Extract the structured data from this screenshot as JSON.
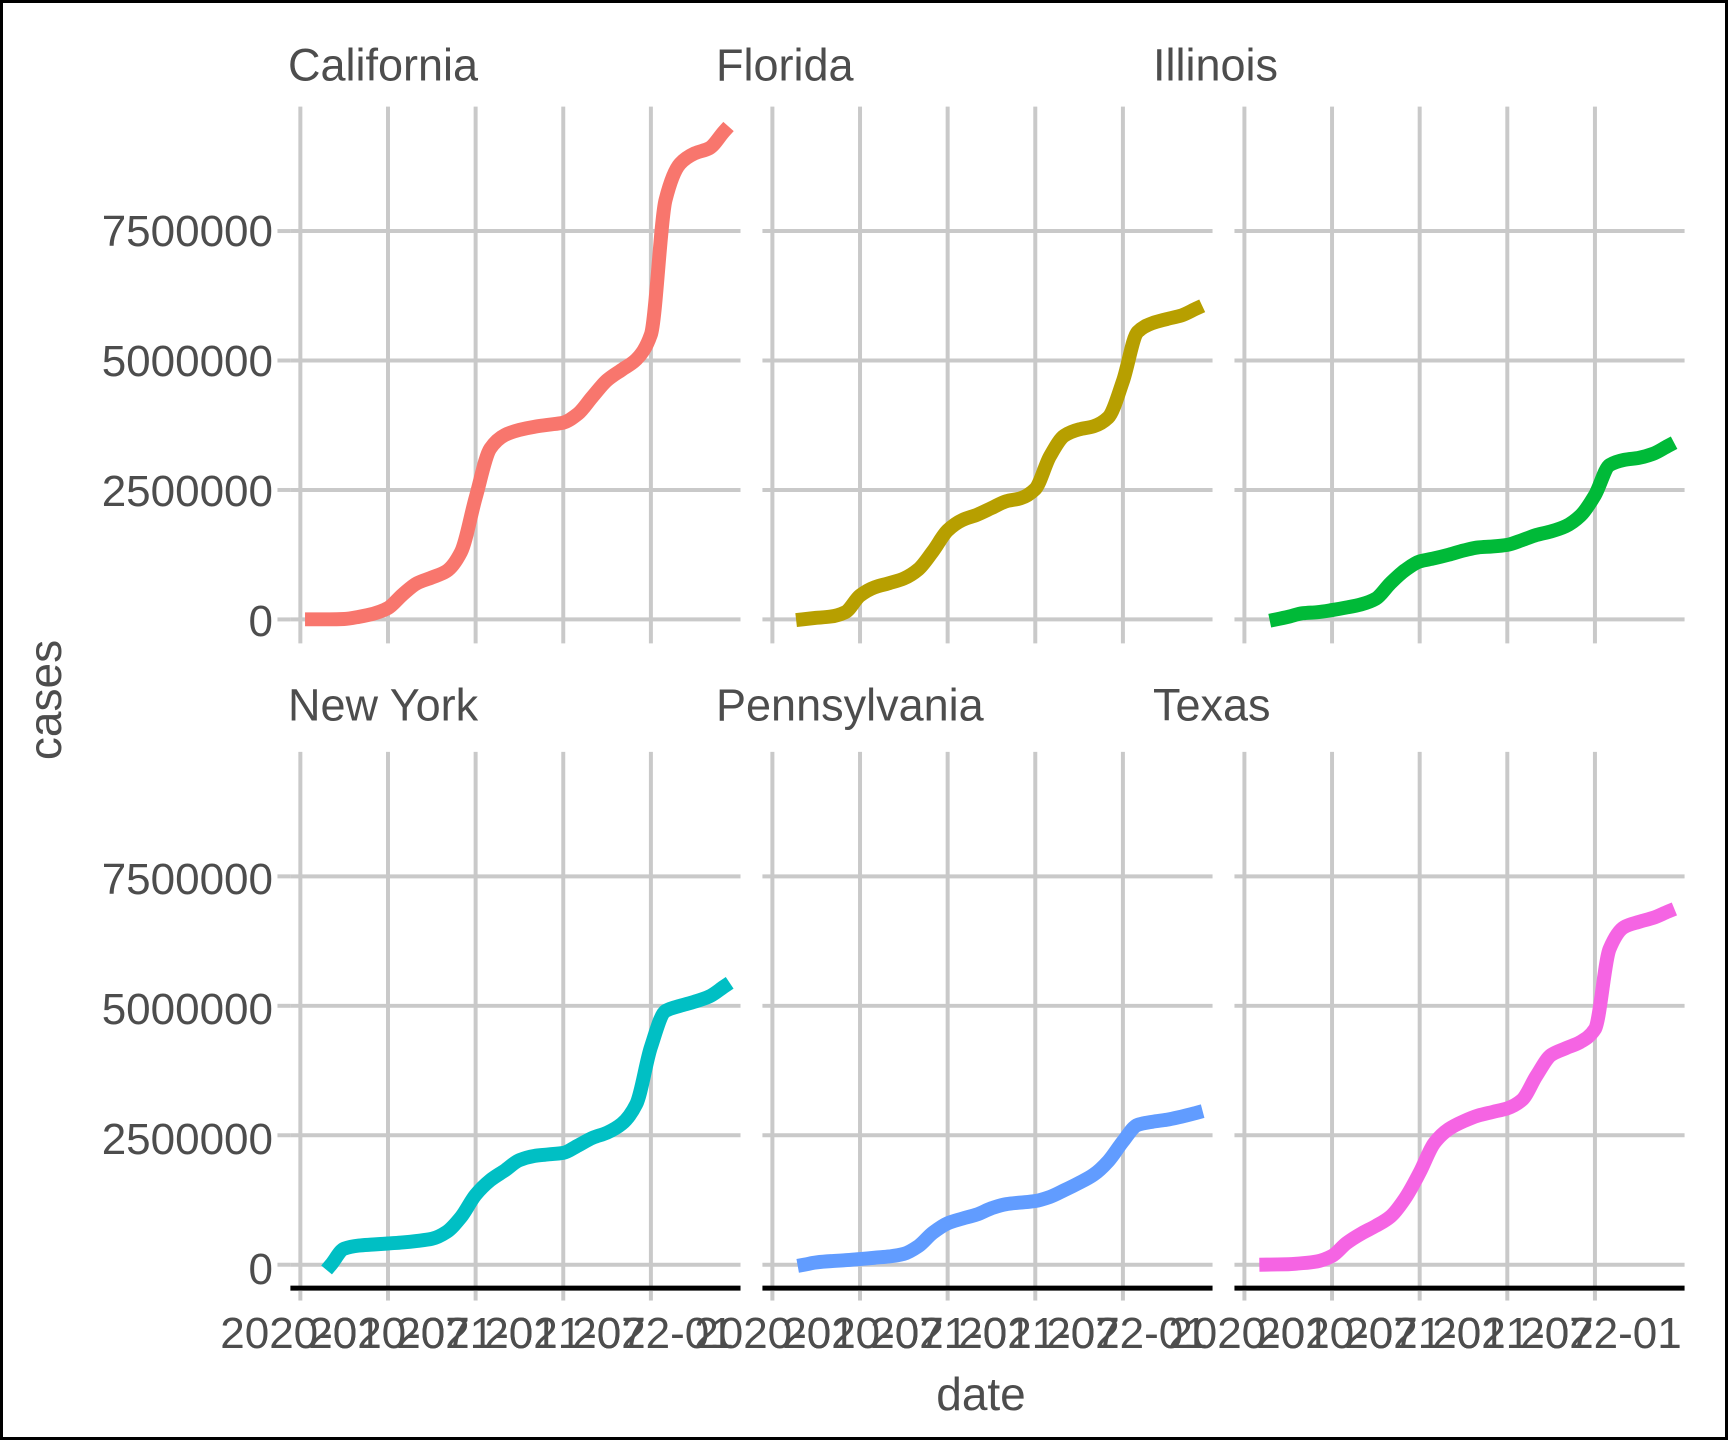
{
  "figure": {
    "background_color": "#ffffff",
    "frame_color": "#000000",
    "grid_color": "#c9c9c9",
    "axis_line_color": "#000000",
    "text_color": "#4d4d4d"
  },
  "axes": {
    "y_title": "cases",
    "x_title": "date",
    "y_ticks": [
      {
        "label": "7500000",
        "value": 7500000
      },
      {
        "label": "5000000",
        "value": 5000000
      },
      {
        "label": "2500000",
        "value": 2500000
      },
      {
        "label": "0",
        "value": 0
      }
    ],
    "x_ticks": [
      "2020-01",
      "2020-07",
      "2021-01",
      "2021-07",
      "2022-01"
    ]
  },
  "chart_data": {
    "type": "line",
    "title": "",
    "xlabel": "date",
    "ylabel": "cases",
    "facet_layout": {
      "rows": 2,
      "cols": 3
    },
    "x_axis": {
      "unit": "months_since_2020-01",
      "tick_labels": [
        "2020-01",
        "2020-07",
        "2021-01",
        "2021-07",
        "2022-01"
      ],
      "tick_month_index": [
        0,
        6,
        12,
        18,
        24
      ],
      "data_range_months": [
        0.7,
        29
      ]
    },
    "y_axis": {
      "unit": "cases",
      "tick_values": [
        0,
        2500000,
        5000000,
        7500000
      ],
      "ylim": [
        -470000,
        9870000
      ],
      "grid": true
    },
    "facets": [
      {
        "title": "California",
        "color": "#F8766D",
        "points_month_vs_million_cases": [
          [
            0.8,
            0.001
          ],
          [
            2,
            0.002
          ],
          [
            3,
            0.008
          ],
          [
            4,
            0.05
          ],
          [
            5,
            0.11
          ],
          [
            6,
            0.22
          ],
          [
            7,
            0.48
          ],
          [
            8,
            0.7
          ],
          [
            9,
            0.81
          ],
          [
            10,
            0.93
          ],
          [
            11,
            1.3
          ],
          [
            12,
            2.35
          ],
          [
            13,
            3.3
          ],
          [
            14,
            3.56
          ],
          [
            15,
            3.66
          ],
          [
            16,
            3.72
          ],
          [
            17,
            3.76
          ],
          [
            18,
            3.8
          ],
          [
            19,
            3.97
          ],
          [
            20,
            4.3
          ],
          [
            21,
            4.62
          ],
          [
            22,
            4.82
          ],
          [
            23,
            5.02
          ],
          [
            24,
            5.5
          ],
          [
            25,
            8.1
          ],
          [
            26,
            8.8
          ],
          [
            27,
            9.0
          ],
          [
            28,
            9.1
          ],
          [
            29,
            9.42
          ]
        ]
      },
      {
        "title": "Florida",
        "color": "#B79F00",
        "points_month_vs_million_cases": [
          [
            2.1,
            0.001
          ],
          [
            3,
            0.03
          ],
          [
            4,
            0.055
          ],
          [
            5,
            0.14
          ],
          [
            6,
            0.46
          ],
          [
            7,
            0.62
          ],
          [
            8,
            0.7
          ],
          [
            9,
            0.79
          ],
          [
            10,
            0.97
          ],
          [
            11,
            1.32
          ],
          [
            12,
            1.72
          ],
          [
            13,
            1.92
          ],
          [
            14,
            2.02
          ],
          [
            15,
            2.15
          ],
          [
            16,
            2.28
          ],
          [
            17,
            2.34
          ],
          [
            18,
            2.52
          ],
          [
            19,
            3.15
          ],
          [
            20,
            3.55
          ],
          [
            21,
            3.67
          ],
          [
            22,
            3.73
          ],
          [
            23,
            3.9
          ],
          [
            24,
            4.6
          ],
          [
            25,
            5.55
          ],
          [
            26,
            5.72
          ],
          [
            27,
            5.8
          ],
          [
            28,
            5.87
          ],
          [
            29,
            6.0
          ]
        ]
      },
      {
        "title": "Illinois",
        "color": "#00BA38",
        "points_month_vs_million_cases": [
          [
            2.2,
            0.001
          ],
          [
            3,
            0.05
          ],
          [
            4,
            0.12
          ],
          [
            5,
            0.14
          ],
          [
            6,
            0.18
          ],
          [
            7,
            0.23
          ],
          [
            8,
            0.29
          ],
          [
            9,
            0.4
          ],
          [
            10,
            0.7
          ],
          [
            11,
            0.95
          ],
          [
            12,
            1.12
          ],
          [
            13,
            1.18
          ],
          [
            14,
            1.25
          ],
          [
            15,
            1.33
          ],
          [
            16,
            1.39
          ],
          [
            17,
            1.41
          ],
          [
            18,
            1.44
          ],
          [
            19,
            1.53
          ],
          [
            20,
            1.63
          ],
          [
            21,
            1.7
          ],
          [
            22,
            1.8
          ],
          [
            23,
            2.0
          ],
          [
            24,
            2.4
          ],
          [
            25,
            2.98
          ],
          [
            26,
            3.08
          ],
          [
            27,
            3.12
          ],
          [
            28,
            3.2
          ],
          [
            29,
            3.35
          ]
        ]
      },
      {
        "title": "New York",
        "color": "#00BFC4",
        "points_month_vs_million_cases": [
          [
            2.1,
            0.001
          ],
          [
            3,
            0.31
          ],
          [
            4,
            0.37
          ],
          [
            5,
            0.39
          ],
          [
            6,
            0.41
          ],
          [
            7,
            0.43
          ],
          [
            8,
            0.46
          ],
          [
            9,
            0.5
          ],
          [
            10,
            0.63
          ],
          [
            11,
            0.92
          ],
          [
            12,
            1.35
          ],
          [
            13,
            1.63
          ],
          [
            14,
            1.82
          ],
          [
            15,
            2.02
          ],
          [
            16,
            2.1
          ],
          [
            17,
            2.13
          ],
          [
            18,
            2.16
          ],
          [
            19,
            2.3
          ],
          [
            20,
            2.45
          ],
          [
            21,
            2.55
          ],
          [
            22,
            2.72
          ],
          [
            23,
            3.1
          ],
          [
            24,
            4.2
          ],
          [
            25,
            4.9
          ],
          [
            26,
            5.0
          ],
          [
            27,
            5.08
          ],
          [
            28,
            5.18
          ],
          [
            29,
            5.37
          ]
        ]
      },
      {
        "title": "Pennsylvania",
        "color": "#619CFF",
        "points_month_vs_million_cases": [
          [
            2.2,
            0.001
          ],
          [
            3,
            0.045
          ],
          [
            4,
            0.07
          ],
          [
            5,
            0.086
          ],
          [
            6,
            0.11
          ],
          [
            7,
            0.135
          ],
          [
            8,
            0.16
          ],
          [
            9,
            0.21
          ],
          [
            10,
            0.36
          ],
          [
            11,
            0.62
          ],
          [
            12,
            0.8
          ],
          [
            13,
            0.89
          ],
          [
            14,
            0.97
          ],
          [
            15,
            1.09
          ],
          [
            16,
            1.17
          ],
          [
            17,
            1.2
          ],
          [
            18,
            1.23
          ],
          [
            19,
            1.31
          ],
          [
            20,
            1.44
          ],
          [
            21,
            1.58
          ],
          [
            22,
            1.74
          ],
          [
            23,
            2.0
          ],
          [
            24,
            2.38
          ],
          [
            25,
            2.7
          ],
          [
            26,
            2.76
          ],
          [
            27,
            2.8
          ],
          [
            28,
            2.86
          ],
          [
            29,
            2.93
          ]
        ]
      },
      {
        "title": "Texas",
        "color": "#F564E3",
        "points_month_vs_million_cases": [
          [
            1.5,
            0.001
          ],
          [
            3,
            0.01
          ],
          [
            4,
            0.03
          ],
          [
            5,
            0.065
          ],
          [
            6,
            0.17
          ],
          [
            7,
            0.42
          ],
          [
            8,
            0.6
          ],
          [
            9,
            0.75
          ],
          [
            10,
            0.93
          ],
          [
            11,
            1.28
          ],
          [
            12,
            1.78
          ],
          [
            13,
            2.35
          ],
          [
            14,
            2.62
          ],
          [
            15,
            2.77
          ],
          [
            16,
            2.88
          ],
          [
            17,
            2.95
          ],
          [
            18,
            3.02
          ],
          [
            19,
            3.18
          ],
          [
            20,
            3.65
          ],
          [
            21,
            4.05
          ],
          [
            22,
            4.18
          ],
          [
            23,
            4.3
          ],
          [
            24,
            4.55
          ],
          [
            25,
            6.1
          ],
          [
            26,
            6.52
          ],
          [
            27,
            6.62
          ],
          [
            28,
            6.7
          ],
          [
            29,
            6.82
          ]
        ]
      }
    ],
    "legend": "none"
  }
}
